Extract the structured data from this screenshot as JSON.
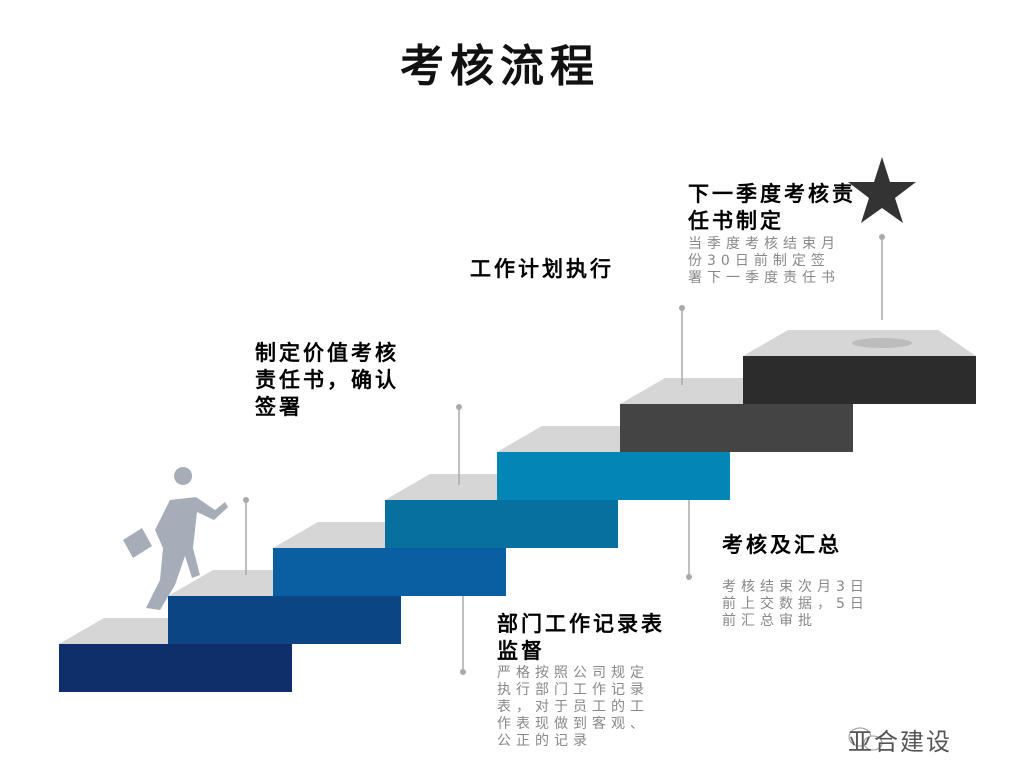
{
  "title": "考核流程",
  "steps": [
    {
      "heading": "制定价值考核责任书，确认签署",
      "desc": ""
    },
    {
      "heading": "部门工作记录表监督",
      "desc": "严格按照公司规定执行部门工作记录表，对于员工的工作表现做到客观、公正的记录"
    },
    {
      "heading": "工作计划执行",
      "desc": ""
    },
    {
      "heading": "考核及汇总",
      "desc": "考核结束次月3日前上交数据，5日前汇总审批"
    },
    {
      "heading": "下一季度考核责任书制定",
      "desc": "当季度考核结束月份30日前制定签署下一季度责任书"
    }
  ],
  "stair_colors": [
    "#0f2f6b",
    "#0c4583",
    "#0a5fa3",
    "#08709f",
    "#0386b6",
    "#444444",
    "#2c2c2c"
  ],
  "icons": [
    "runner-icon",
    "star-icon",
    "wechat-icon"
  ],
  "watermark": "亚合建设"
}
